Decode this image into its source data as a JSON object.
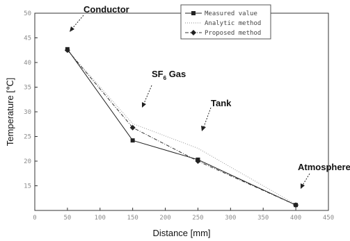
{
  "chart_data": {
    "type": "line",
    "xlabel": "Distance [mm]",
    "ylabel": "Temperature [℃]",
    "xlim": [
      0,
      450
    ],
    "ylim": [
      10,
      50
    ],
    "x_ticks": [
      0,
      50,
      100,
      150,
      200,
      250,
      300,
      350,
      400,
      450
    ],
    "y_ticks": [
      15,
      20,
      25,
      30,
      35,
      40,
      45,
      50
    ],
    "x": [
      50,
      150,
      250,
      400
    ],
    "series": [
      {
        "name": "Measured value",
        "values": [
          42.7,
          24.2,
          20.3,
          11.1
        ],
        "style": "solid",
        "marker": "square"
      },
      {
        "name": "Analytic method",
        "values": [
          42.5,
          27.6,
          22.6,
          11.2
        ],
        "style": "dotted",
        "marker": "none"
      },
      {
        "name": "Proposed method",
        "values": [
          42.5,
          26.8,
          20.0,
          11.1
        ],
        "style": "dashdot",
        "marker": "diamond"
      }
    ],
    "legend_position": "top-right",
    "annotations": [
      {
        "text": "Conductor",
        "x": 50,
        "y": 42.6
      },
      {
        "text": "SF6 Gas",
        "text_main": "SF",
        "text_sub": "6",
        "text_tail": " Gas",
        "x": 150,
        "y": 27.0
      },
      {
        "text": "Tank",
        "x": 250,
        "y": 22.6
      },
      {
        "text": "Atmosphere",
        "x": 400,
        "y": 11.1
      }
    ]
  }
}
